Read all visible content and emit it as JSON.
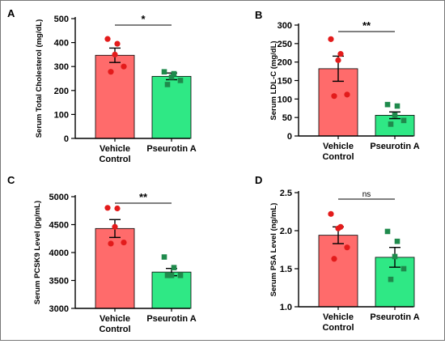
{
  "colors": {
    "vehicle_bar": "#ff6b6b",
    "vehicle_dot": "#e31b1b",
    "treated_bar": "#2fe885",
    "treated_dot": "#1f8a4c",
    "axis": "#000000",
    "border": "#777777"
  },
  "chart_data": [
    {
      "panel_letter": "A",
      "type": "bar",
      "ylabel": "Serum Total Cholesterol (mg/dL)",
      "ylim": [
        0,
        500
      ],
      "yticks": [
        0,
        100,
        200,
        300,
        400,
        500
      ],
      "categories": [
        {
          "line1": "Vehicle",
          "line2": "Control"
        },
        {
          "line1": "Pseurotin A",
          "line2": ""
        }
      ],
      "means": [
        347,
        259
      ],
      "sem": [
        30,
        14
      ],
      "points": [
        [
          415,
          395,
          350,
          300,
          278
        ],
        [
          278,
          270,
          256,
          242,
          225
        ]
      ],
      "significance": "*"
    },
    {
      "panel_letter": "B",
      "type": "bar",
      "ylabel": "Serum LDL-C (mg/dL)",
      "ylim": [
        0,
        300
      ],
      "yticks": [
        0,
        50,
        100,
        150,
        200,
        250,
        300
      ],
      "categories": [
        {
          "line1": "Vehicle",
          "line2": "Control"
        },
        {
          "line1": "Pseurotin A",
          "line2": ""
        }
      ],
      "means": [
        182,
        56
      ],
      "sem": [
        34,
        9
      ],
      "points": [
        [
          262,
          222,
          205,
          112,
          108
        ],
        [
          85,
          81,
          56,
          42,
          32
        ]
      ],
      "significance": "**"
    },
    {
      "panel_letter": "C",
      "type": "bar",
      "ylabel": "Serum PCSK9 Level (pg/mL)",
      "ylim": [
        3000,
        5000
      ],
      "yticks": [
        3000,
        3500,
        4000,
        4500,
        5000
      ],
      "categories": [
        {
          "line1": "Vehicle",
          "line2": "Control"
        },
        {
          "line1": "Pseurotin A",
          "line2": ""
        }
      ],
      "means": [
        4430,
        3650
      ],
      "sem": [
        160,
        65
      ],
      "points": [
        [
          4800,
          4790,
          4460,
          4180,
          4160
        ],
        [
          3920,
          3730,
          3590,
          3590,
          3590
        ]
      ],
      "significance": "**"
    },
    {
      "panel_letter": "D",
      "type": "bar",
      "ylabel": "Serum PSA Level (ng/mL)",
      "ylim": [
        1.0,
        2.5
      ],
      "yticks": [
        "1.0",
        "1.5",
        "2.0",
        "2.5"
      ],
      "categories": [
        {
          "line1": "Vehicle",
          "line2": "Control"
        },
        {
          "line1": "Pseurotin A",
          "line2": ""
        }
      ],
      "means": [
        1.94,
        1.65
      ],
      "sem": [
        0.11,
        0.13
      ],
      "points": [
        [
          2.22,
          2.05,
          2.03,
          1.78,
          1.63
        ],
        [
          1.99,
          1.86,
          1.66,
          1.5,
          1.36
        ]
      ],
      "significance": "ns"
    }
  ]
}
